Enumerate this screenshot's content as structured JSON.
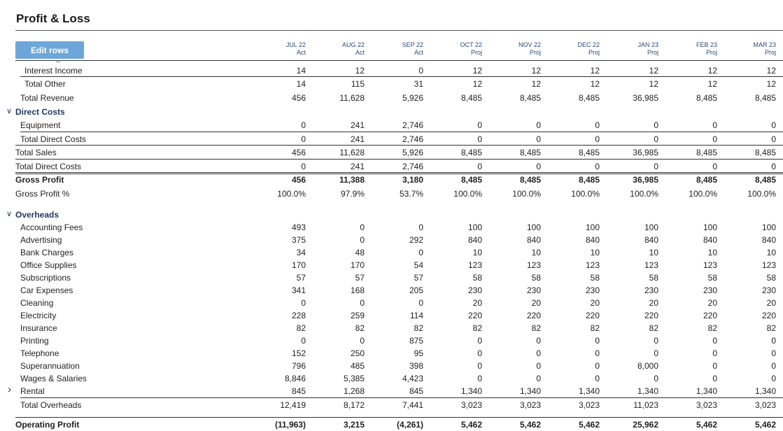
{
  "title": "Profit & Loss",
  "edit_rows_label": "Edit rows",
  "months": [
    {
      "label": "JUL 22",
      "type": "Act"
    },
    {
      "label": "AUG 22",
      "type": "Act"
    },
    {
      "label": "SEP 22",
      "type": "Act"
    },
    {
      "label": "OCT 22",
      "type": "Proj"
    },
    {
      "label": "NOV 22",
      "type": "Proj"
    },
    {
      "label": "DEC 22",
      "type": "Proj"
    },
    {
      "label": "JAN 23",
      "type": "Proj"
    },
    {
      "label": "FEB 23",
      "type": "Proj"
    },
    {
      "label": "MAR 23",
      "type": "Proj"
    }
  ],
  "rows": [
    {
      "label": "Interest Income",
      "values": [
        "14",
        "12",
        "0",
        "12",
        "12",
        "12",
        "12",
        "12",
        "12"
      ]
    },
    {
      "label": "Total Other",
      "values": [
        "14",
        "115",
        "31",
        "12",
        "12",
        "12",
        "12",
        "12",
        "12"
      ]
    },
    {
      "label": "Total Revenue",
      "values": [
        "456",
        "11,628",
        "5,926",
        "8,485",
        "8,485",
        "8,485",
        "36,985",
        "8,485",
        "8,485"
      ]
    },
    {
      "label": "Direct Costs",
      "values": []
    },
    {
      "label": "Equipment",
      "values": [
        "0",
        "241",
        "2,746",
        "0",
        "0",
        "0",
        "0",
        "0",
        "0"
      ]
    },
    {
      "label": "Total Direct Costs",
      "values": [
        "0",
        "241",
        "2,746",
        "0",
        "0",
        "0",
        "0",
        "0",
        "0"
      ]
    },
    {
      "label": "Total Sales",
      "values": [
        "456",
        "11,628",
        "5,926",
        "8,485",
        "8,485",
        "8,485",
        "36,985",
        "8,485",
        "8,485"
      ]
    },
    {
      "label": "Total Direct Costs",
      "values": [
        "0",
        "241",
        "2,746",
        "0",
        "0",
        "0",
        "0",
        "0",
        "0"
      ]
    },
    {
      "label": "Gross Profit",
      "values": [
        "456",
        "11,388",
        "3,180",
        "8,485",
        "8,485",
        "8,485",
        "36,985",
        "8,485",
        "8,485"
      ]
    },
    {
      "label": "Gross Profit %",
      "values": [
        "100.0%",
        "97.9%",
        "53.7%",
        "100.0%",
        "100.0%",
        "100.0%",
        "100.0%",
        "100.0%",
        "100.0%"
      ]
    },
    {
      "label": "Overheads",
      "values": []
    },
    {
      "label": "Accounting Fees",
      "values": [
        "493",
        "0",
        "0",
        "100",
        "100",
        "100",
        "100",
        "100",
        "100"
      ]
    },
    {
      "label": "Advertising",
      "values": [
        "375",
        "0",
        "292",
        "840",
        "840",
        "840",
        "840",
        "840",
        "840"
      ]
    },
    {
      "label": "Bank Charges",
      "values": [
        "34",
        "48",
        "0",
        "10",
        "10",
        "10",
        "10",
        "10",
        "10"
      ]
    },
    {
      "label": "Office Supplies",
      "values": [
        "170",
        "170",
        "54",
        "123",
        "123",
        "123",
        "123",
        "123",
        "123"
      ]
    },
    {
      "label": "Subscriptions",
      "values": [
        "57",
        "57",
        "57",
        "58",
        "58",
        "58",
        "58",
        "58",
        "58"
      ]
    },
    {
      "label": "Car Expenses",
      "values": [
        "341",
        "168",
        "205",
        "230",
        "230",
        "230",
        "230",
        "230",
        "230"
      ]
    },
    {
      "label": "Cleaning",
      "values": [
        "0",
        "0",
        "0",
        "20",
        "20",
        "20",
        "20",
        "20",
        "20"
      ]
    },
    {
      "label": "Electricity",
      "values": [
        "228",
        "259",
        "114",
        "220",
        "220",
        "220",
        "220",
        "220",
        "220"
      ]
    },
    {
      "label": "Insurance",
      "values": [
        "82",
        "82",
        "82",
        "82",
        "82",
        "82",
        "82",
        "82",
        "82"
      ]
    },
    {
      "label": "Printing",
      "values": [
        "0",
        "0",
        "875",
        "0",
        "0",
        "0",
        "0",
        "0",
        "0"
      ]
    },
    {
      "label": "Telephone",
      "values": [
        "152",
        "250",
        "95",
        "0",
        "0",
        "0",
        "0",
        "0",
        "0"
      ]
    },
    {
      "label": "Superannuation",
      "values": [
        "796",
        "485",
        "398",
        "0",
        "0",
        "0",
        "8,000",
        "0",
        "0"
      ]
    },
    {
      "label": "Wages & Salaries",
      "values": [
        "8,846",
        "5,385",
        "4,423",
        "0",
        "0",
        "0",
        "0",
        "0",
        "0"
      ]
    },
    {
      "label": "Rental",
      "values": [
        "845",
        "1,268",
        "845",
        "1,340",
        "1,340",
        "1,340",
        "1,340",
        "1,340",
        "1,340"
      ]
    },
    {
      "label": "Total Overheads",
      "values": [
        "12,419",
        "8,172",
        "7,441",
        "3,023",
        "3,023",
        "3,023",
        "11,023",
        "3,023",
        "3,023"
      ]
    },
    {
      "label": "Operating Profit",
      "values": [
        "(11,963)",
        "3,215",
        "(4,261)",
        "5,462",
        "5,462",
        "5,462",
        "25,962",
        "5,462",
        "5,462"
      ]
    }
  ]
}
